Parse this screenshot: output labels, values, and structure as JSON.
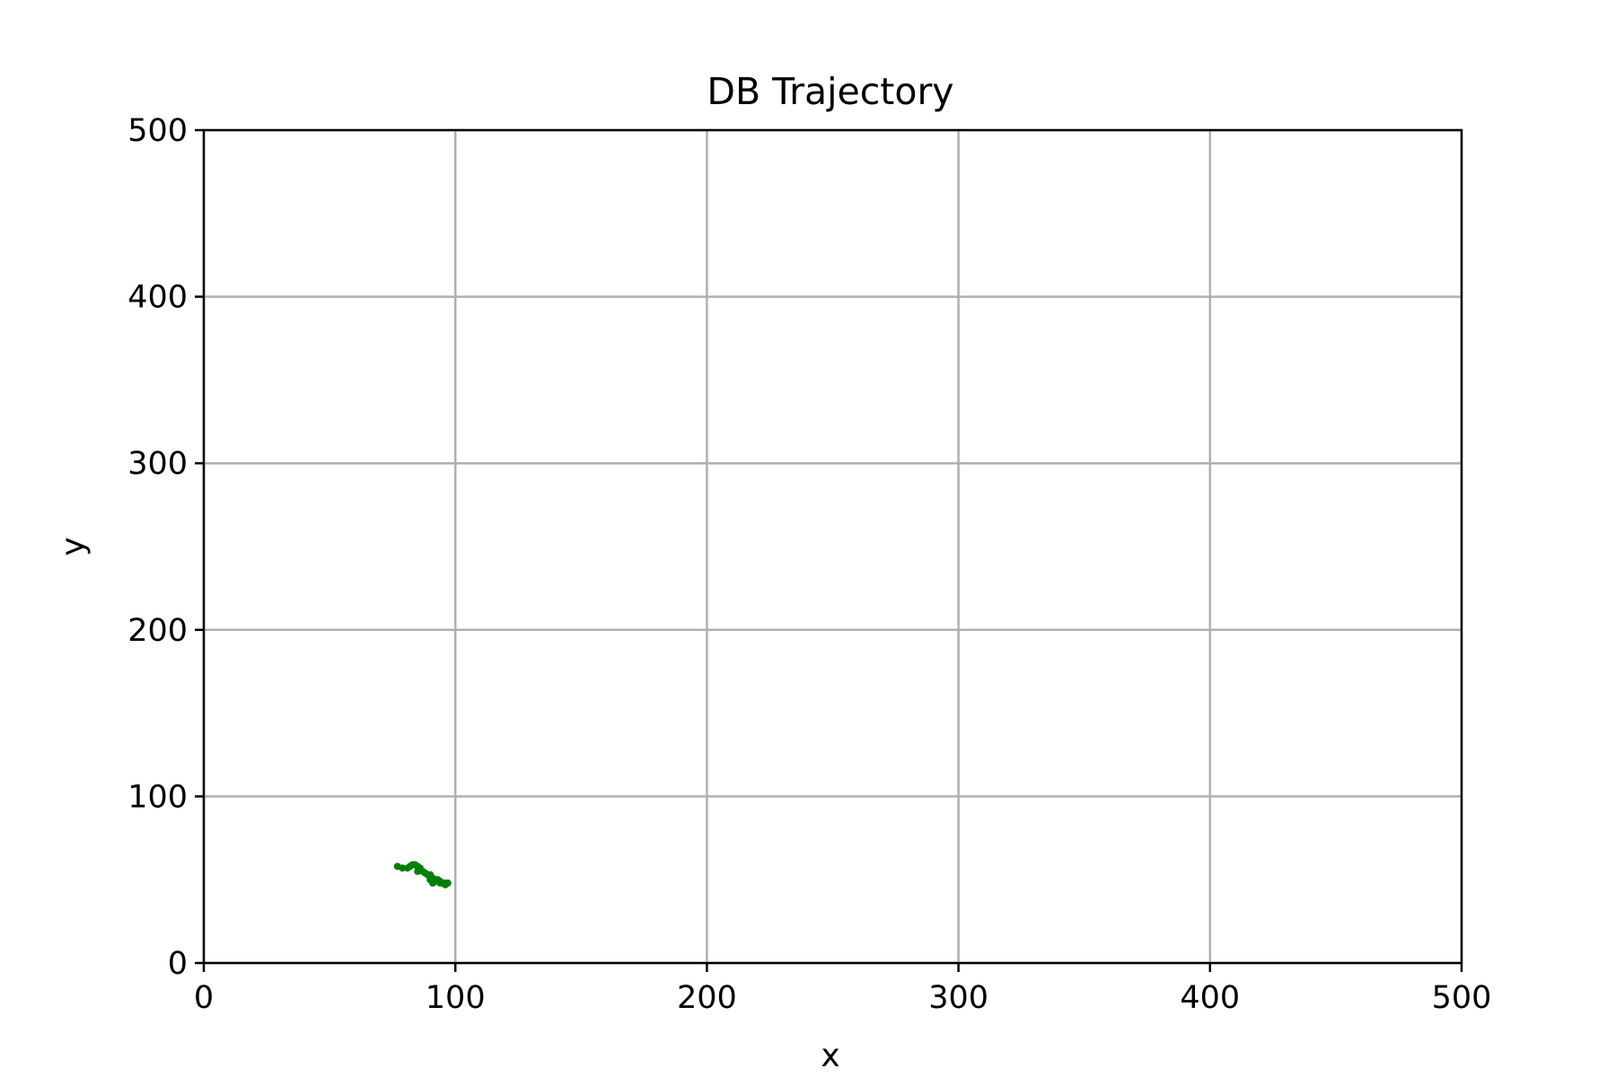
{
  "chart_data": {
    "type": "line",
    "title": "DB Trajectory",
    "xlabel": "x",
    "ylabel": "y",
    "xlim": [
      0,
      500
    ],
    "ylim": [
      0,
      500
    ],
    "xticks": [
      0,
      100,
      200,
      300,
      400,
      500
    ],
    "yticks": [
      0,
      100,
      200,
      300,
      400,
      500
    ],
    "grid": true,
    "series": [
      {
        "color": "#008000",
        "x": [
          77,
          79,
          81,
          82,
          83,
          84,
          85,
          86,
          85,
          87,
          88,
          89,
          90,
          91,
          92,
          93,
          94,
          95,
          96,
          97,
          96,
          94,
          93,
          92,
          91,
          90
        ],
        "y": [
          58,
          57,
          57,
          58,
          59,
          59,
          58,
          57,
          55,
          55,
          54,
          53,
          53,
          51,
          50,
          50,
          49,
          48,
          48,
          48,
          47,
          48,
          50,
          49,
          48,
          50
        ]
      }
    ]
  }
}
